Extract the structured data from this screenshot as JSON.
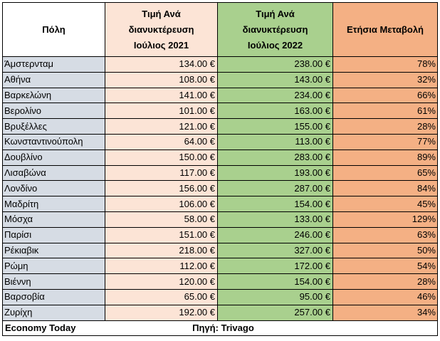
{
  "table": {
    "headers": {
      "city": "Πόλη",
      "price_2021": [
        "Τιμή Ανά",
        "διανυκτέρευση",
        "Ιούλιος 2021"
      ],
      "price_2022": [
        "Τιμή Ανά",
        "διανυκτέρευση",
        "Ιούλιος 2022"
      ],
      "change": "Ετήσια Μεταβολή"
    },
    "rows": [
      {
        "city": "Άμστερνταμ",
        "price_2021": "134.00 €",
        "price_2022": "238.00 €",
        "change": "78%"
      },
      {
        "city": "Αθήνα",
        "price_2021": "108.00 €",
        "price_2022": "143.00 €",
        "change": "32%"
      },
      {
        "city": "Βαρκελώνη",
        "price_2021": "141.00 €",
        "price_2022": "234.00 €",
        "change": "66%"
      },
      {
        "city": "Βερολίνο",
        "price_2021": "101.00 €",
        "price_2022": "163.00 €",
        "change": "61%"
      },
      {
        "city": "Βρυξέλλες",
        "price_2021": "121.00 €",
        "price_2022": "155.00 €",
        "change": "28%"
      },
      {
        "city": "Κωνσταντινούπολη",
        "price_2021": "64.00 €",
        "price_2022": "113.00 €",
        "change": "77%"
      },
      {
        "city": "Δουβλίνο",
        "price_2021": "150.00 €",
        "price_2022": "283.00 €",
        "change": "89%"
      },
      {
        "city": "Λισαβώνα",
        "price_2021": "117.00 €",
        "price_2022": "193.00 €",
        "change": "65%"
      },
      {
        "city": "Λονδίνο",
        "price_2021": "156.00 €",
        "price_2022": "287.00 €",
        "change": "84%"
      },
      {
        "city": "Μαδρίτη",
        "price_2021": "106.00 €",
        "price_2022": "154.00 €",
        "change": "45%"
      },
      {
        "city": "Μόσχα",
        "price_2021": "58.00 €",
        "price_2022": "133.00 €",
        "change": "129%"
      },
      {
        "city": "Παρίσι",
        "price_2021": "151.00 €",
        "price_2022": "246.00 €",
        "change": "63%"
      },
      {
        "city": "Ρέκιαβικ",
        "price_2021": "218.00 €",
        "price_2022": "327.00 €",
        "change": "50%"
      },
      {
        "city": "Ρώμη",
        "price_2021": "112.00 €",
        "price_2022": "172.00 €",
        "change": "54%"
      },
      {
        "city": "Βιέννη",
        "price_2021": "120.00 €",
        "price_2022": "154.00 €",
        "change": "28%"
      },
      {
        "city": "Βαρσοβία",
        "price_2021": "65.00 €",
        "price_2022": "95.00 €",
        "change": "46%"
      },
      {
        "city": "Ζυρίχη",
        "price_2021": "192.00 €",
        "price_2022": "257.00 €",
        "change": "34%"
      }
    ]
  },
  "footer": {
    "brand": "Economy Today",
    "source": "Πηγή: Trivago"
  },
  "colors": {
    "city_fill": "#d6dce4",
    "price_2021_fill": "#fce4d6",
    "price_2022_fill": "#a9d08e",
    "change_fill": "#f4b084",
    "border": "#000000"
  }
}
